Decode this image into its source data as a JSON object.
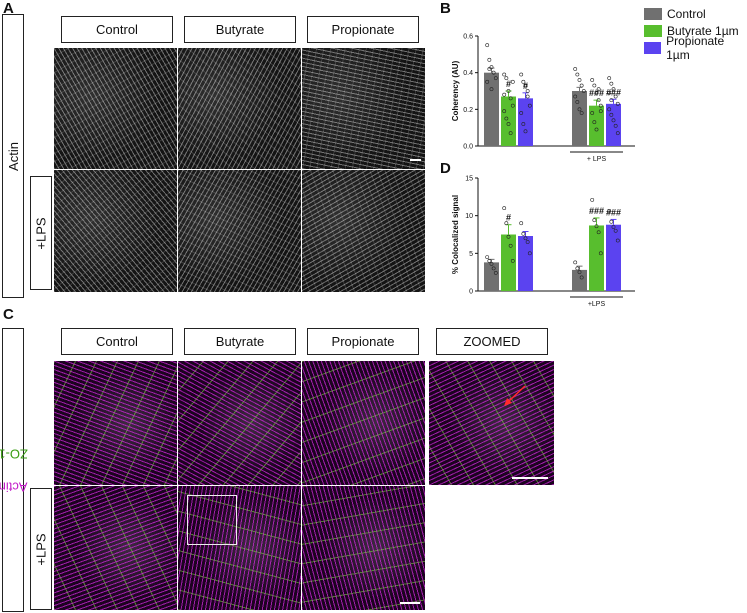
{
  "panels": {
    "a": {
      "letter": "A",
      "row_label": "Actin",
      "lps_label": "+LPS",
      "headers": [
        "Control",
        "Butyrate",
        "Propionate"
      ]
    },
    "b": {
      "letter": "B",
      "legend": [
        {
          "label": "Control",
          "color": "#707070"
        },
        {
          "label": "Butyrate 1µm",
          "color": "#58be2e"
        },
        {
          "label": "Propionate 1µm",
          "color": "#5b43f0"
        }
      ]
    },
    "c": {
      "letter": "C",
      "row_label_actin": "Actin",
      "row_label_zo1": "ZO-1",
      "lps_label": "+LPS",
      "headers": [
        "Control",
        "Butyrate",
        "Propionate",
        "ZOOMED"
      ]
    },
    "d": {
      "letter": "D"
    }
  },
  "chart_data": [
    {
      "panel": "B",
      "type": "bar",
      "ylabel": "Coherency (AU)",
      "ylim": [
        0,
        0.6
      ],
      "yticks": [
        "0.0",
        "0.2",
        "0.4",
        "0.6"
      ],
      "group_labels": [
        "",
        "+ LPS"
      ],
      "series": [
        {
          "name": "Control",
          "color": "#707070",
          "values": [
            0.4,
            0.3
          ],
          "errors": [
            0.025,
            0.02
          ]
        },
        {
          "name": "Butyrate 1µm",
          "color": "#58be2e",
          "values": [
            0.27,
            0.22
          ],
          "errors": [
            0.03,
            0.03
          ]
        },
        {
          "name": "Propionate 1µm",
          "color": "#5b43f0",
          "values": [
            0.26,
            0.23
          ],
          "errors": [
            0.03,
            0.025
          ]
        }
      ],
      "significance": [
        [
          "",
          "#",
          "#"
        ],
        [
          "",
          "###",
          "###"
        ]
      ],
      "points": [
        [
          [
            0.55,
            0.47,
            0.43,
            0.4,
            0.37,
            0.35,
            0.42,
            0.31
          ],
          [
            0.39,
            0.37,
            0.3,
            0.26,
            0.22,
            0.19,
            0.15,
            0.12,
            0.07,
            0.35,
            0.28
          ],
          [
            0.39,
            0.35,
            0.33,
            0.27,
            0.22,
            0.18,
            0.12,
            0.08,
            0.3
          ]
        ],
        [
          [
            0.42,
            0.39,
            0.36,
            0.33,
            0.3,
            0.27,
            0.24,
            0.2,
            0.18
          ],
          [
            0.36,
            0.33,
            0.29,
            0.25,
            0.22,
            0.18,
            0.13,
            0.09,
            0.31,
            0.19
          ],
          [
            0.37,
            0.34,
            0.31,
            0.27,
            0.23,
            0.2,
            0.17,
            0.14,
            0.11,
            0.07,
            0.29,
            0.25
          ]
        ]
      ]
    },
    {
      "panel": "D",
      "type": "bar",
      "ylabel": "% Colocalized signal",
      "ylim": [
        0,
        15
      ],
      "yticks": [
        "0",
        "5",
        "10",
        "15"
      ],
      "group_labels": [
        "",
        "+LPS"
      ],
      "series": [
        {
          "name": "Control",
          "color": "#707070",
          "values": [
            3.8,
            2.8
          ],
          "errors": [
            0.4,
            0.5
          ]
        },
        {
          "name": "Butyrate 1µm",
          "color": "#58be2e",
          "values": [
            7.5,
            8.7
          ],
          "errors": [
            1.3,
            1.0
          ]
        },
        {
          "name": "Propionate 1µm",
          "color": "#5b43f0",
          "values": [
            7.3,
            8.8
          ],
          "errors": [
            0.6,
            0.7
          ]
        }
      ],
      "significance": [
        [
          "",
          "#",
          ""
        ],
        [
          "",
          "###",
          "###"
        ]
      ],
      "points": [
        [
          [
            4.5,
            4.0,
            3.6,
            3.0,
            2.4
          ],
          [
            11.0,
            9.0,
            7.2,
            6.0,
            4.0
          ],
          [
            9.0,
            7.6,
            7.0,
            6.5,
            5.0
          ]
        ],
        [
          [
            3.8,
            3.0,
            2.5,
            1.8
          ],
          [
            12.1,
            9.4,
            8.6,
            7.8,
            5.0
          ],
          [
            10.6,
            9.2,
            8.5,
            8.0,
            6.7
          ]
        ]
      ]
    }
  ]
}
